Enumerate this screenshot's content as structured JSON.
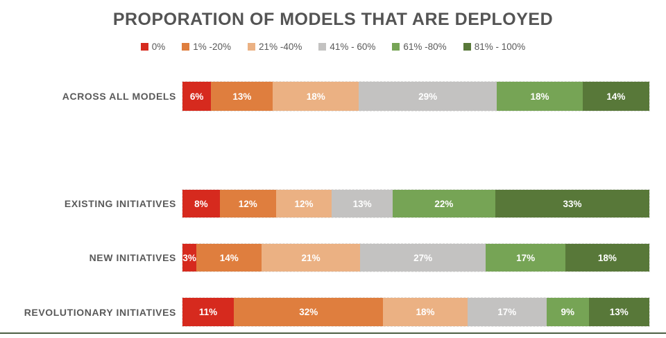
{
  "title": "PROPORATION OF MODELS THAT ARE DEPLOYED",
  "colors": {
    "red": "#d62a1e",
    "orange": "#df7e3e",
    "tan": "#ebb183",
    "gray": "#c3c2c1",
    "light_green": "#76a455",
    "dark_green": "#587839",
    "text_gray": "#595959",
    "title_gray": "#545454",
    "bottom_rule": "#4c5f44"
  },
  "chart_data": {
    "type": "bar",
    "stacked": true,
    "orientation": "horizontal",
    "title": "PROPORATION OF MODELS THAT ARE DEPLOYED",
    "legend_position": "top",
    "grid": false,
    "legend": [
      "0%",
      "1% -20%",
      "21% -40%",
      "41% - 60%",
      "61% -80%",
      "81% - 100%"
    ],
    "series_colors": [
      "#d62a1e",
      "#df7e3e",
      "#ebb183",
      "#c3c2c1",
      "#76a455",
      "#587839"
    ],
    "categories": [
      "ACROSS ALL MODELS",
      "EXISTING INITIATIVES",
      "NEW INITIATIVES",
      "REVOLUTIONARY INITIATIVES"
    ],
    "rows": [
      {
        "category": "ACROSS ALL MODELS",
        "values": [
          6,
          13,
          18,
          29,
          18,
          14
        ],
        "labels": [
          "6%",
          "13%",
          "18%",
          "29%",
          "18%",
          "14%"
        ]
      },
      {
        "category": "EXISTING INITIATIVES",
        "values": [
          8,
          12,
          12,
          13,
          22,
          33
        ],
        "labels": [
          "8%",
          "12%",
          "12%",
          "13%",
          "22%",
          "33%"
        ]
      },
      {
        "category": "NEW INITIATIVES",
        "values": [
          3,
          14,
          21,
          27,
          17,
          18
        ],
        "labels": [
          "3%",
          "14%",
          "21%",
          "27%",
          "17%",
          "18%"
        ]
      },
      {
        "category": "REVOLUTIONARY INITIATIVES",
        "values": [
          11,
          32,
          18,
          17,
          9,
          13
        ],
        "labels": [
          "11%",
          "32%",
          "18%",
          "17%",
          "9%",
          "13%"
        ]
      }
    ]
  }
}
